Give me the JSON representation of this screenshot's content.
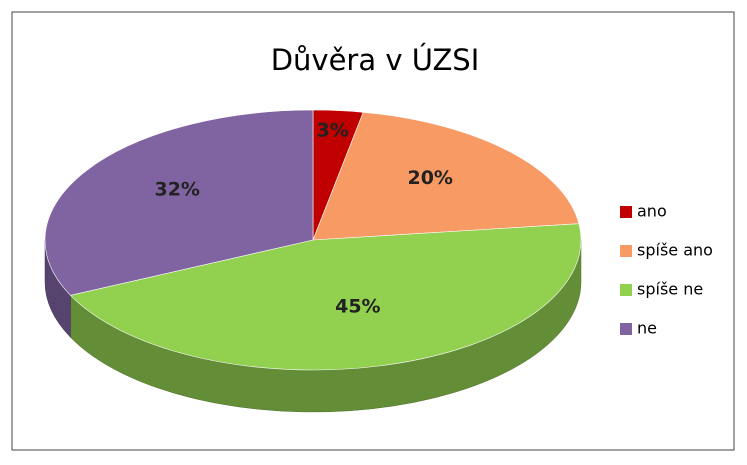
{
  "chart_data": {
    "type": "pie",
    "title": "Důvěra v ÚZSI",
    "categories": [
      "ano",
      "spíše ano",
      "spíše ne",
      "ne"
    ],
    "values": [
      3,
      20,
      45,
      32
    ],
    "value_labels": [
      "3%",
      "20%",
      "45%",
      "32%"
    ],
    "colors": [
      "#c00000",
      "#f79a64",
      "#92d050",
      "#8064a2"
    ],
    "legend": "right"
  }
}
